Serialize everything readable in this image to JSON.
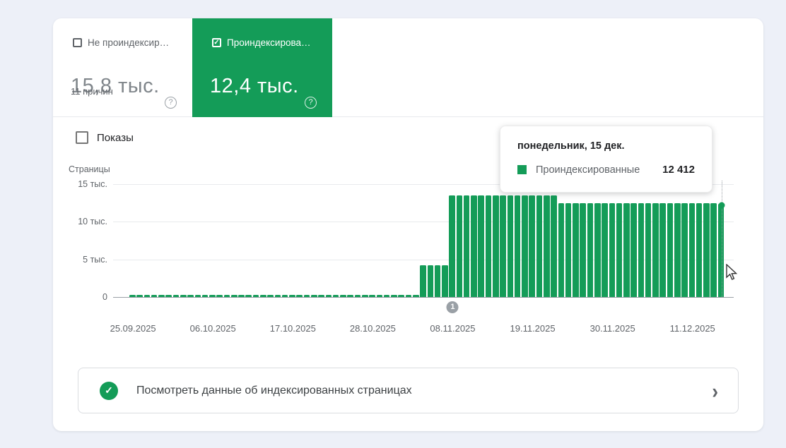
{
  "colors": {
    "green": "#149c58",
    "grid": "#e8eaed",
    "axis": "#9aa0a6"
  },
  "cards": {
    "not_indexed": {
      "label": "Не проиндексир…",
      "value": "15,8 тыс.",
      "reasons": "11 причин",
      "help_icon": "?"
    },
    "indexed": {
      "label": "Проиндексирова…",
      "value": "12,4 тыс.",
      "help_icon": "?",
      "checkmark": "✓"
    }
  },
  "impressions": {
    "label": "Показы"
  },
  "chart_data": {
    "type": "bar",
    "ylabel": "Страницы",
    "ylim": [
      0,
      15000
    ],
    "grid": true,
    "y_ticks": [
      {
        "label": "15 тыс.",
        "value": 15000
      },
      {
        "label": "10 тыс.",
        "value": 10000
      },
      {
        "label": "5 тыс.",
        "value": 5000
      },
      {
        "label": "0",
        "value": 0
      }
    ],
    "series": [
      {
        "name": "Проиндексированные",
        "segments": [
          {
            "count": 40,
            "value": 300,
            "dates": "25.09.2025–03.11.2025"
          },
          {
            "count": 4,
            "value": 4200,
            "dates": "04.11.2025–07.11.2025"
          },
          {
            "count": 15,
            "value": 13500,
            "dates": "08.11.2025–22.11.2025"
          },
          {
            "count": 22,
            "value": 12430,
            "dates": "23.11.2025–14.12.2025"
          },
          {
            "count": 1,
            "value": 12412,
            "dates": "15.12.2025"
          }
        ]
      }
    ],
    "x_labels": [
      "25.09.2025",
      "06.10.2025",
      "17.10.2025",
      "28.10.2025",
      "08.11.2025",
      "19.11.2025",
      "30.11.2025",
      "11.12.2025"
    ],
    "x_label_indices": [
      0,
      11,
      22,
      33,
      44,
      55,
      66,
      77
    ],
    "annotation_marker": {
      "label": "1",
      "bar_index": 44
    },
    "hover": {
      "bar_index": 81,
      "dot": true
    },
    "legend_position": "tooltip"
  },
  "tooltip": {
    "title": "понедельник, 15 дек.",
    "series": "Проиндексированные",
    "value": "12 412"
  },
  "action_card": {
    "label": "Посмотреть данные об индексированных страницах",
    "chevron": "›"
  }
}
